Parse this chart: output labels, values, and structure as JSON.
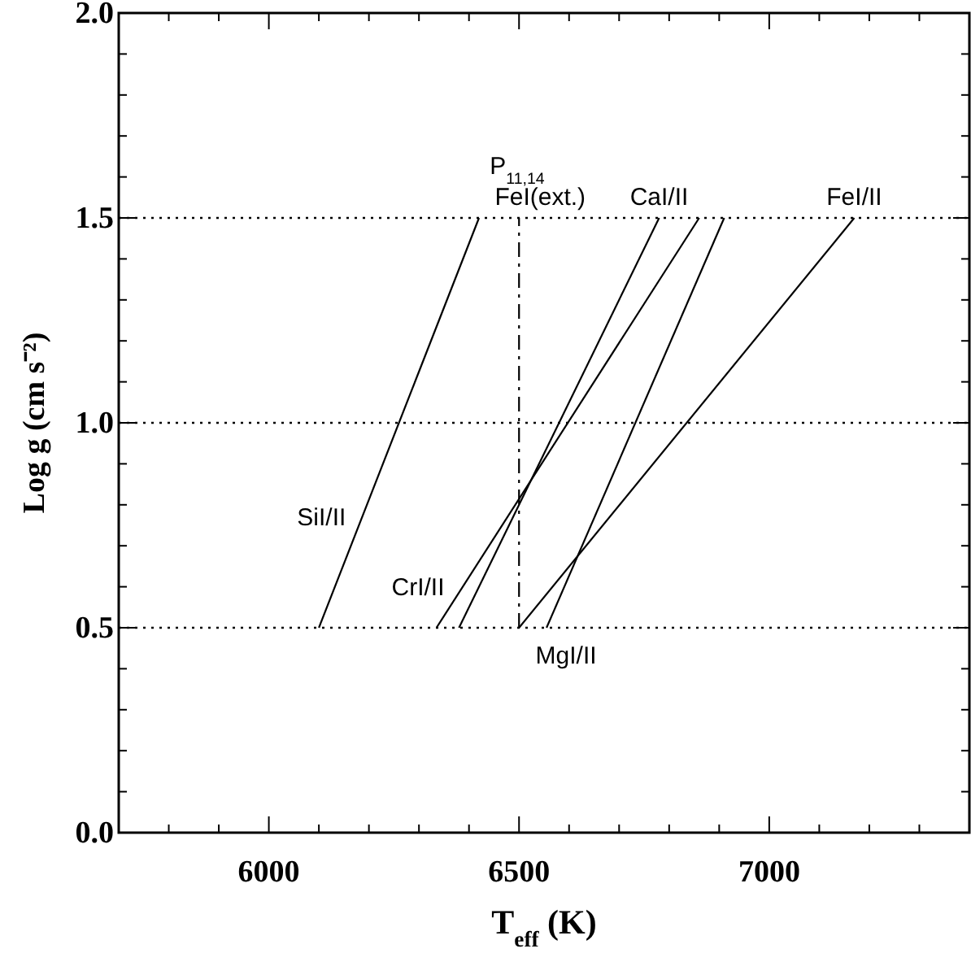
{
  "chart_data": {
    "type": "line",
    "xlabel": "T$_{eff}$ (K)",
    "ylabel": "Log g (cm s⁻²)",
    "xlim": [
      5700,
      7400
    ],
    "ylim": [
      0,
      2
    ],
    "xticks": [
      {
        "value": 5800,
        "label": null
      },
      {
        "value": 5900,
        "label": null
      },
      6000,
      {
        "value": 6100,
        "label": null
      },
      {
        "value": 6200,
        "label": null
      },
      {
        "value": 6300,
        "label": null
      },
      {
        "value": 6400,
        "label": null
      },
      6500,
      {
        "value": 6600,
        "label": null
      },
      {
        "value": 6700,
        "label": null
      },
      {
        "value": 6800,
        "label": null
      },
      {
        "value": 6900,
        "label": null
      },
      7000,
      {
        "value": 7100,
        "label": null
      },
      {
        "value": 7200,
        "label": null
      },
      {
        "value": 7300,
        "label": null
      }
    ],
    "yticks": [
      {
        "value": 0,
        "label": "0.0"
      },
      {
        "value": 0.1,
        "label": null
      },
      {
        "value": 0.2,
        "label": null
      },
      {
        "value": 0.3,
        "label": null
      },
      {
        "value": 0.4,
        "label": null
      },
      {
        "value": 0.5,
        "label": "0.5"
      },
      {
        "value": 0.6,
        "label": null
      },
      {
        "value": 0.7,
        "label": null
      },
      {
        "value": 0.8,
        "label": null
      },
      {
        "value": 0.9,
        "label": null
      },
      {
        "value": 1,
        "label": "1.0"
      },
      {
        "value": 1.1,
        "label": null
      },
      {
        "value": 1.2,
        "label": null
      },
      {
        "value": 1.3,
        "label": null
      },
      {
        "value": 1.4,
        "label": null
      },
      {
        "value": 1.5,
        "label": "1.5"
      },
      {
        "value": 1.6,
        "label": null
      },
      {
        "value": 1.7,
        "label": null
      },
      {
        "value": 1.8,
        "label": null
      },
      {
        "value": 1.9,
        "label": null
      },
      {
        "value": 2,
        "label": "2.0"
      }
    ],
    "series": [
      {
        "name": "SiI/II",
        "color": "#000000",
        "x": [
          6100,
          6420
        ],
        "values": [
          0.5,
          1.5
        ]
      },
      {
        "name": "CrI/II",
        "color": "#000000",
        "x": [
          6335,
          6860
        ],
        "values": [
          0.5,
          1.5
        ]
      },
      {
        "name": "CaI/II",
        "color": "#000000",
        "x": [
          6380,
          6780
        ],
        "values": [
          0.5,
          1.5
        ]
      },
      {
        "name": "FeI(ext.)",
        "color": "#000000",
        "x": [
          6500,
          6500
        ],
        "values": [
          0.5,
          1.5
        ],
        "line_style": "dashed"
      },
      {
        "name": "FeI/II",
        "color": "#000000",
        "x": [
          6500,
          7170
        ],
        "values": [
          0.5,
          1.5
        ]
      },
      {
        "name": "MgI/II",
        "color": "#000000",
        "x": [
          6555,
          6910
        ],
        "values": [
          0.5,
          1.5
        ]
      }
    ],
    "ref_lines": [
      {
        "axis": "y",
        "value": 0.5,
        "line_style": "dotted"
      },
      {
        "axis": "y",
        "value": 1,
        "line_style": "dotted"
      },
      {
        "axis": "y",
        "value": 1.5,
        "line_style": "dotted"
      }
    ],
    "annotations": [
      {
        "text": "P$_{11,14}$",
        "x": 6500,
        "y": 1.5
      }
    ],
    "grid": false,
    "marker": "none"
  }
}
